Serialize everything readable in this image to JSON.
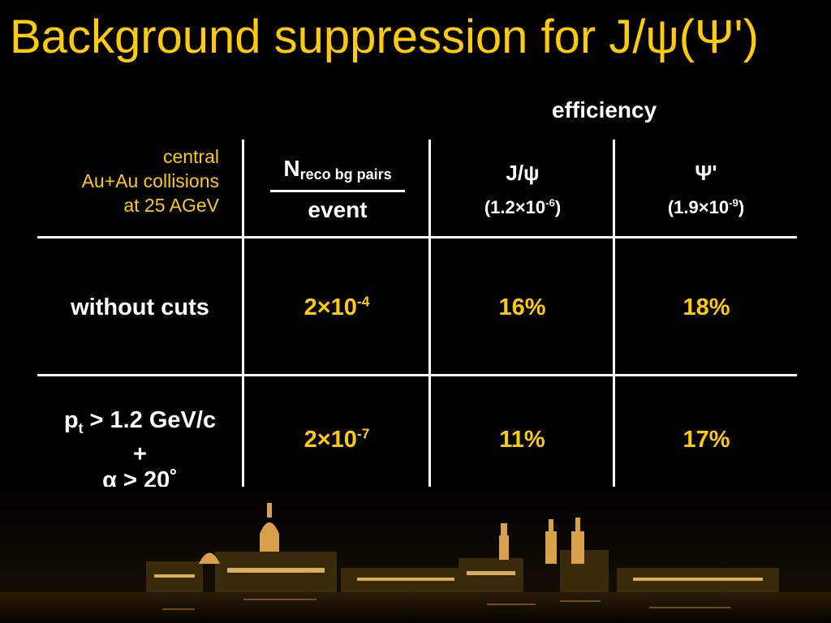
{
  "title": "Background suppression for J/ψ(Ψ')",
  "efficiency_label": "efficiency",
  "conditions": [
    "central",
    "Au+Au collisions",
    "at 25 AGeV"
  ],
  "header": {
    "ratio_numerator": "N",
    "ratio_numerator_sub": "reco bg pairs",
    "ratio_denominator": "event",
    "jpsi": {
      "symbol": "J/ψ",
      "branching": "(1.2×10",
      "branching_exp": "-6",
      "close": ")"
    },
    "psiprime": {
      "symbol": "Ψ'",
      "branching": "(1.9×10",
      "branching_exp": "-9",
      "close": ")"
    }
  },
  "rows": [
    {
      "label": "without cuts",
      "bg_base": "2×10",
      "bg_exp": "-4",
      "jpsi": "16%",
      "psiprime": "18%"
    },
    {
      "label_pt": "p",
      "label_pt_sub": "t",
      "label_pt_rest": " > 1.2 GeV/c",
      "label_plus": "+",
      "label_alpha": "α > 20˚",
      "bg_base": "2×10",
      "bg_exp": "-7",
      "jpsi": "11%",
      "psiprime": "17%"
    }
  ],
  "colors": {
    "accent": "#FFCC00",
    "background": "#000000",
    "text": "#FFFFFF"
  }
}
